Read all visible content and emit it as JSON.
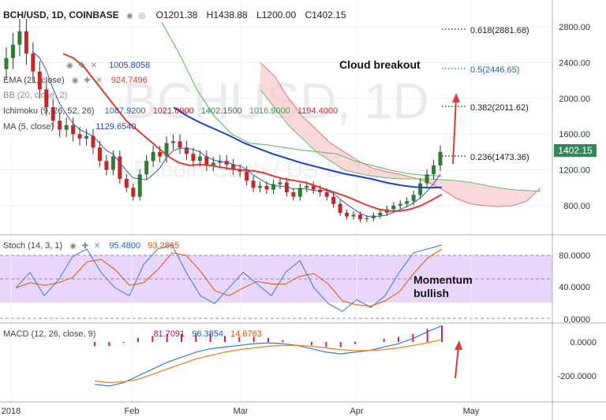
{
  "header": {
    "symbol": "BCH/USD, 1D, COINBASE",
    "open": "O1201.38",
    "high": "H1438.88",
    "low": "L1200.00",
    "close": "C1402.15"
  },
  "watermark": {
    "big": "BCHUSD, 1D",
    "small": "Bitcoin Cash / US Dollar"
  },
  "indicators": {
    "ema21": {
      "label": "EMA (21, close)",
      "value": "924.7496",
      "color": "#e53935"
    },
    "value_1005": "1005.8058",
    "bb": {
      "label": "BB (20, close, 2)"
    },
    "ichimoku": {
      "label": "Ichimoku (9, 26, 52, 26)",
      "v1": "1087.9200",
      "v2": "1021.0900",
      "v3": "1402.1500",
      "v4": "1016.9000",
      "v5": "1194.4000"
    },
    "ma5": {
      "label": "MA (5, close)",
      "value": "1129.6540"
    },
    "stoch": {
      "label": "Stoch (14, 3, 1)",
      "k": "95.4800",
      "d": "93.2865"
    },
    "macd": {
      "label": "MACD (12, 26, close, 9)",
      "hist": "81.7091",
      "macd": "96.3854",
      "signal": "14.6763"
    }
  },
  "annotations": {
    "cloud": "Cloud breakout",
    "momentum": "Momentum\nbullish"
  },
  "fib": [
    {
      "label": "0.618(2881.68)",
      "value": 2881.68,
      "color": "#222"
    },
    {
      "label": "0.5(2446.65)",
      "value": 2446.65,
      "color": "#1565c0"
    },
    {
      "label": "0.382(2011.62)",
      "value": 2011.62,
      "color": "#222"
    },
    {
      "label": "0.236(1473.36)",
      "value": 1473.36,
      "color": "#222"
    }
  ],
  "last_price": "1402.15",
  "axes": {
    "price_ticks": [
      "2800.00",
      "2400.00",
      "2000.00",
      "1600.00",
      "1200.00",
      "800.00"
    ],
    "price_tick_values": [
      2800,
      2400,
      2000,
      1600,
      1200,
      800
    ],
    "stoch_ticks": [
      "80.0000",
      "40.0000",
      "0.0000"
    ],
    "macd_ticks": [
      "0.0000",
      "-200.0000"
    ],
    "time_labels": [
      "2018",
      "Feb",
      "Mar",
      "Apr",
      "May"
    ]
  },
  "chart_data": {
    "type": "candlestick",
    "title": "BCH/USD, 1D, COINBASE",
    "price_range": [
      400,
      3000
    ],
    "time_axis": [
      "2018",
      "Feb",
      "Mar",
      "Apr",
      "May"
    ],
    "close_series": [
      2450,
      2600,
      2750,
      2500,
      2300,
      2100,
      1900,
      1750,
      1650,
      1700,
      1600,
      1550,
      1580,
      1450,
      1300,
      1200,
      1350,
      1100,
      1000,
      900,
      1150,
      1300,
      1400,
      1350,
      1500,
      1520,
      1450,
      1380,
      1300,
      1350,
      1250,
      1280,
      1300,
      1260,
      1200,
      1180,
      1080,
      1000,
      1020,
      980,
      1040,
      1060,
      950,
      900,
      1000,
      1020,
      980,
      950,
      900,
      820,
      720,
      680,
      700,
      650,
      660,
      690,
      720,
      760,
      800,
      820,
      850,
      920,
      1050,
      1150,
      1250,
      1402
    ],
    "ema21": [
      2500,
      2450,
      2350,
      2200,
      2050,
      1900,
      1750,
      1650,
      1550,
      1450,
      1350,
      1280,
      1250,
      1260,
      1250,
      1230,
      1210,
      1200,
      1190,
      1170,
      1130,
      1100,
      1080,
      1060,
      1020,
      980,
      940,
      900,
      850,
      800,
      760,
      740,
      740,
      760,
      800,
      860,
      925
    ],
    "ichimoku_kijun": [
      1900,
      1800,
      1720,
      1650,
      1580,
      1500,
      1440,
      1380,
      1330,
      1280,
      1240,
      1200,
      1160,
      1130,
      1100,
      1060,
      1030,
      1010,
      1000,
      1005
    ],
    "stoch_k": [
      40,
      60,
      30,
      50,
      80,
      90,
      60,
      40,
      30,
      70,
      90,
      95,
      60,
      30,
      20,
      40,
      60,
      45,
      30,
      60,
      75,
      40,
      20,
      10,
      25,
      15,
      30,
      60,
      85,
      90,
      95
    ],
    "macd_line": [
      -250,
      -260,
      -240,
      -200,
      -160,
      -120,
      -90,
      -60,
      -40,
      -30,
      -20,
      -10,
      -5,
      -10,
      -20,
      -40,
      -60,
      -70,
      -60,
      -50,
      -30,
      -10,
      20,
      60,
      96
    ],
    "macd_signal": [
      -230,
      -240,
      -235,
      -220,
      -190,
      -160,
      -130,
      -100,
      -80,
      -60,
      -45,
      -35,
      -25,
      -20,
      -20,
      -25,
      -35,
      -45,
      -50,
      -50,
      -45,
      -35,
      -20,
      -5,
      15
    ]
  }
}
